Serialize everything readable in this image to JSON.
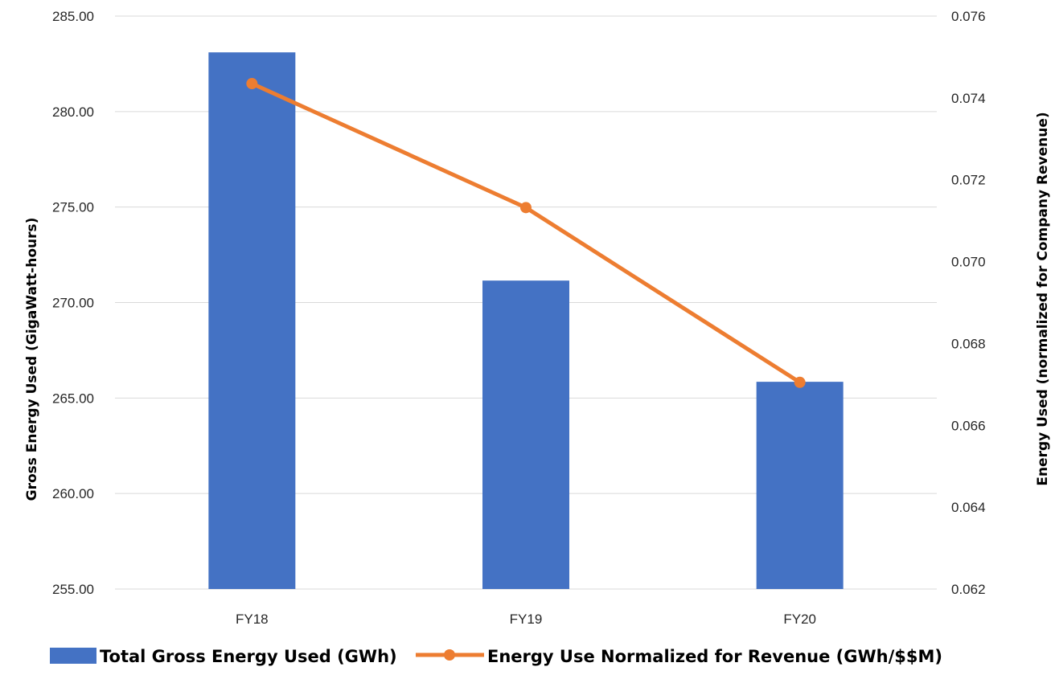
{
  "chart_data": {
    "type": "bar",
    "title": "",
    "categories": [
      "FY18",
      "FY19",
      "FY20"
    ],
    "series": [
      {
        "name": "Total Gross Energy Used (GWh)",
        "type": "bar",
        "axis": "left",
        "color": "#4472C4",
        "values": [
          283.1,
          271.15,
          265.85
        ]
      },
      {
        "name": "Energy Use Normalized for Revenue (GWh/$$M)",
        "type": "line",
        "axis": "right",
        "color": "#ED7D31",
        "values": [
          0.07435,
          0.07132,
          0.06705
        ]
      }
    ],
    "xlabel": "",
    "ylabel_left": "Gross Energy Used (GigaWatt-hours)",
    "ylabel_right": "Energy Used (normalized for Company Revenue)",
    "ylim_left": [
      255,
      285
    ],
    "ylim_right": [
      0.062,
      0.076
    ],
    "yticks_left": [
      "255.00",
      "260.00",
      "265.00",
      "270.00",
      "275.00",
      "280.00",
      "285.00"
    ],
    "yticks_right": [
      "0.062",
      "0.064",
      "0.066",
      "0.068",
      "0.070",
      "0.072",
      "0.074",
      "0.076"
    ],
    "grid": true,
    "legend_position": "bottom"
  }
}
